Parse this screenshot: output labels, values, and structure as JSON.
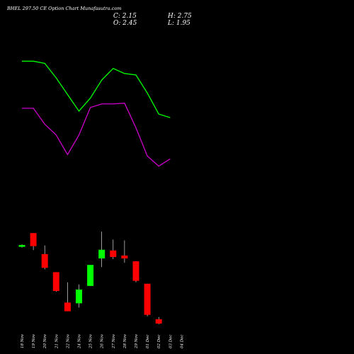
{
  "chart_data": {
    "type": "candlestick",
    "title": "BHEL 297.50 CE Option Chart Munafasutra.com",
    "ohlc_readout": {
      "close": "C: 2.15",
      "high": "H: 2.75",
      "open": "O: 2.45",
      "low": "L: 1.95"
    },
    "categories": [
      "18 Nov",
      "19 Nov",
      "20 Nov",
      "21 Nov",
      "22 Nov",
      "24 Nov",
      "25 Nov",
      "26 Nov",
      "27 Nov",
      "28 Nov",
      "29 Nov",
      "01 Dec",
      "02 Dec",
      "03 Dec",
      "04 Dec"
    ],
    "candles": [
      {
        "date": "18 Nov",
        "open": 8.1,
        "high": 8.2,
        "low": 7.75,
        "close": 7.85,
        "color": "green"
      },
      {
        "date": "19 Nov",
        "open": 9.75,
        "high": 9.75,
        "low": 7.4,
        "close": 7.95,
        "color": "red"
      },
      {
        "date": "20 Nov",
        "open": 6.85,
        "high": 8.05,
        "low": 4.75,
        "close": 4.95,
        "color": "red"
      },
      {
        "date": "21 Nov",
        "open": 4.35,
        "high": 4.35,
        "low": 1.65,
        "close": 1.75,
        "color": "red"
      },
      {
        "date": "22 Nov",
        "open": 0.15,
        "high": 2.95,
        "low": -1.05,
        "close": -1.05,
        "color": "red"
      },
      {
        "date": "24 Nov",
        "open": 0.05,
        "high": 2.65,
        "low": -0.55,
        "close": 1.95,
        "color": "green"
      },
      {
        "date": "25 Nov",
        "open": 2.45,
        "high": 5.35,
        "low": 2.45,
        "close": 5.35,
        "color": "green"
      },
      {
        "date": "26 Nov",
        "open": 6.25,
        "high": 9.95,
        "low": 5.05,
        "close": 7.45,
        "color": "green"
      },
      {
        "date": "27 Nov",
        "open": 7.35,
        "high": 8.85,
        "low": 6.15,
        "close": 6.45,
        "color": "red"
      },
      {
        "date": "28 Nov",
        "open": 6.65,
        "high": 8.75,
        "low": 5.65,
        "close": 6.25,
        "color": "red"
      },
      {
        "date": "29 Nov",
        "open": 5.85,
        "high": 5.85,
        "low": 2.95,
        "close": 3.15,
        "color": "red"
      },
      {
        "date": "01 Dec",
        "open": 2.75,
        "high": 2.75,
        "low": -1.75,
        "close": -1.55,
        "color": "red"
      },
      {
        "date": "02 Dec",
        "open": -2.15,
        "high": -1.85,
        "low": -2.85,
        "close": -2.75,
        "color": "red"
      }
    ],
    "overlay_series": [
      {
        "color": "#00ff00",
        "points": [
          {
            "x": "18 Nov",
            "y": 33.5
          },
          {
            "x": "19 Nov",
            "y": 33.5
          },
          {
            "x": "20 Nov",
            "y": 33.2
          },
          {
            "x": "21 Nov",
            "y": 31.2
          },
          {
            "x": "22 Nov",
            "y": 28.9
          },
          {
            "x": "24 Nov",
            "y": 26.6
          },
          {
            "x": "25 Nov",
            "y": 28.4
          },
          {
            "x": "26 Nov",
            "y": 30.9
          },
          {
            "x": "27 Nov",
            "y": 32.5
          },
          {
            "x": "28 Nov",
            "y": 31.8
          },
          {
            "x": "29 Nov",
            "y": 31.6
          },
          {
            "x": "01 Dec",
            "y": 29.1
          },
          {
            "x": "02 Dec",
            "y": 26.2
          },
          {
            "x": "03 Dec",
            "y": 25.7
          }
        ]
      },
      {
        "color": "#cc00cc",
        "points": [
          {
            "x": "18 Nov",
            "y": 27.0
          },
          {
            "x": "19 Nov",
            "y": 27.0
          },
          {
            "x": "20 Nov",
            "y": 24.8
          },
          {
            "x": "21 Nov",
            "y": 23.3
          },
          {
            "x": "22 Nov",
            "y": 20.6
          },
          {
            "x": "24 Nov",
            "y": 23.3
          },
          {
            "x": "25 Nov",
            "y": 27.1
          },
          {
            "x": "26 Nov",
            "y": 27.6
          },
          {
            "x": "27 Nov",
            "y": 27.6
          },
          {
            "x": "28 Nov",
            "y": 27.7
          },
          {
            "x": "29 Nov",
            "y": 24.3
          },
          {
            "x": "01 Dec",
            "y": 20.4
          },
          {
            "x": "02 Dec",
            "y": 19.0
          },
          {
            "x": "03 Dec",
            "y": 20.0
          }
        ]
      }
    ],
    "ylim": [
      -5,
      40
    ],
    "grid": false,
    "colors": {
      "background": "#000000",
      "up": "#00ff00",
      "down": "#ff0000",
      "wick": "#ffffff",
      "text": "#ffffff"
    }
  }
}
